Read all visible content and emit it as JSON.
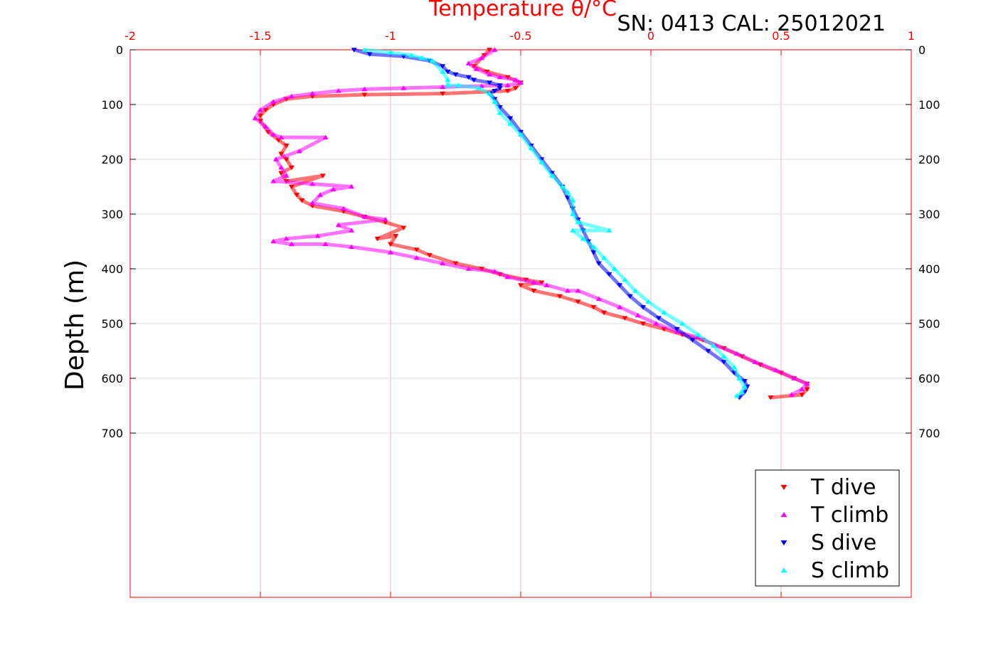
{
  "colors": {
    "t_dive": "#ff0000",
    "t_climb": "#ff00ff",
    "s_dive": "#0000ff",
    "s_climb": "#00ffff",
    "top_axis": "#ff0000",
    "grid_vertical": "#ffb3b3",
    "grid_horizontal": "#dddddd"
  },
  "chart_data": {
    "type": "scatter",
    "title": "Temperature θ/°C",
    "annotation": "SN: 0413  CAL: 25012021",
    "xlabel": "Temperature θ/°C",
    "ylabel": "Depth (m)",
    "xlim": [
      -2,
      1
    ],
    "ylim": [
      0,
      1000
    ],
    "y_reversed": true,
    "xticks": [
      -2,
      -1.5,
      -1,
      -0.5,
      0,
      0.5,
      1
    ],
    "xtick_labels": [
      "-2",
      "-1.5",
      "-1",
      "-0.5",
      "0",
      "0.5",
      "1"
    ],
    "yticks": [
      0,
      100,
      200,
      300,
      400,
      500,
      600,
      700
    ],
    "ytick_labels": [
      "0",
      "100",
      "200",
      "300",
      "400",
      "500",
      "600",
      "700"
    ],
    "grid": true,
    "legend_position": "bottom-right",
    "series": [
      {
        "name": "T dive",
        "marker": "triangle-down",
        "x": [
          -0.62,
          -0.64,
          -0.68,
          -0.63,
          -0.55,
          -0.5,
          -0.52,
          -0.55,
          -0.8,
          -1.1,
          -1.3,
          -1.4,
          -1.45,
          -1.48,
          -1.5,
          -1.5,
          -1.47,
          -1.43,
          -1.4,
          -1.42,
          -1.4,
          -1.38,
          -1.42,
          -1.4,
          -1.26,
          -1.38,
          -1.36,
          -1.34,
          -1.3,
          -1.18,
          -1.1,
          -1.02,
          -0.95,
          -1.05,
          -0.98,
          -1.0,
          -0.9,
          -0.85,
          -0.75,
          -0.65,
          -0.58,
          -0.48,
          -0.42,
          -0.5,
          -0.45,
          -0.35,
          -0.28,
          -0.22,
          -0.18,
          -0.1,
          -0.03,
          0.05,
          0.12,
          0.2,
          0.28,
          0.35,
          0.42,
          0.5,
          0.55,
          0.6,
          0.6,
          0.58,
          0.46
        ],
        "y": [
          0,
          10,
          30,
          40,
          50,
          60,
          70,
          75,
          80,
          82,
          85,
          90,
          100,
          110,
          120,
          130,
          150,
          165,
          175,
          190,
          200,
          215,
          225,
          240,
          230,
          250,
          265,
          275,
          285,
          295,
          305,
          315,
          325,
          345,
          340,
          355,
          365,
          375,
          390,
          400,
          410,
          420,
          425,
          430,
          440,
          450,
          460,
          470,
          480,
          490,
          500,
          510,
          520,
          530,
          545,
          560,
          575,
          590,
          600,
          610,
          620,
          630,
          635
        ]
      },
      {
        "name": "T climb",
        "marker": "triangle-up",
        "x": [
          -0.6,
          -0.65,
          -0.7,
          -0.67,
          -0.62,
          -0.58,
          -0.52,
          -0.5,
          -0.55,
          -0.65,
          -0.8,
          -0.95,
          -1.1,
          -1.2,
          -1.3,
          -1.38,
          -1.45,
          -1.5,
          -1.52,
          -1.48,
          -1.45,
          -1.42,
          -1.25,
          -1.35,
          -1.44,
          -1.42,
          -1.4,
          -1.45,
          -1.3,
          -1.15,
          -1.22,
          -1.27,
          -1.3,
          -1.18,
          -1.1,
          -1.02,
          -1.2,
          -1.15,
          -1.28,
          -1.4,
          -1.45,
          -1.38,
          -1.25,
          -1.15,
          -1.0,
          -0.9,
          -0.8,
          -0.7,
          -0.6,
          -0.55,
          -0.45,
          -0.4,
          -0.32,
          -0.28,
          -0.2,
          -0.12,
          -0.05,
          0.02,
          0.1,
          0.18,
          0.25,
          0.33,
          0.4,
          0.48,
          0.55,
          0.6,
          0.58,
          0.54
        ],
        "y": [
          0,
          15,
          25,
          35,
          45,
          50,
          55,
          60,
          65,
          66,
          68,
          70,
          72,
          75,
          80,
          85,
          95,
          110,
          125,
          140,
          155,
          160,
          160,
          185,
          200,
          215,
          230,
          240,
          245,
          250,
          255,
          265,
          280,
          290,
          305,
          310,
          320,
          330,
          340,
          345,
          350,
          355,
          355,
          360,
          370,
          380,
          390,
          400,
          405,
          415,
          425,
          430,
          440,
          440,
          455,
          470,
          485,
          500,
          515,
          525,
          540,
          555,
          570,
          585,
          600,
          610,
          620,
          630
        ]
      },
      {
        "name": "S dive",
        "marker": "triangle-down",
        "x": [
          -1.14,
          -1.08,
          -0.95,
          -0.85,
          -0.8,
          -0.78,
          -0.75,
          -0.7,
          -0.68,
          -0.62,
          -0.58,
          -0.58,
          -0.6,
          -0.62,
          -0.6,
          -0.58,
          -0.54,
          -0.5,
          -0.46,
          -0.42,
          -0.38,
          -0.34,
          -0.32,
          -0.3,
          -0.28,
          -0.26,
          -0.24,
          -0.22,
          -0.2,
          -0.16,
          -0.12,
          -0.08,
          -0.03,
          0.03,
          0.1,
          0.16,
          0.22,
          0.28,
          0.32,
          0.36,
          0.37,
          0.36,
          0.34
        ],
        "y": [
          0,
          8,
          12,
          20,
          30,
          40,
          45,
          50,
          55,
          60,
          65,
          70,
          75,
          80,
          90,
          105,
          125,
          150,
          175,
          200,
          225,
          250,
          270,
          290,
          310,
          330,
          350,
          370,
          390,
          410,
          430,
          450,
          470,
          490,
          510,
          530,
          550,
          570,
          590,
          605,
          615,
          625,
          635
        ]
      },
      {
        "name": "S climb",
        "marker": "triangle-up",
        "x": [
          -1.1,
          -1.0,
          -0.92,
          -0.88,
          -0.84,
          -0.8,
          -0.78,
          -0.78,
          -0.74,
          -0.66,
          -0.62,
          -0.6,
          -0.58,
          -0.54,
          -0.5,
          -0.46,
          -0.42,
          -0.38,
          -0.34,
          -0.32,
          -0.3,
          -0.3,
          -0.28,
          -0.16,
          -0.3,
          -0.26,
          -0.22,
          -0.18,
          -0.14,
          -0.1,
          -0.06,
          -0.01,
          0.05,
          0.12,
          0.18,
          0.24,
          0.28,
          0.32,
          0.34,
          0.36,
          0.35,
          0.33
        ],
        "y": [
          0,
          5,
          10,
          15,
          20,
          40,
          55,
          65,
          65,
          70,
          80,
          95,
          115,
          135,
          155,
          180,
          205,
          230,
          250,
          260,
          275,
          300,
          315,
          330,
          330,
          345,
          360,
          380,
          400,
          420,
          440,
          460,
          480,
          500,
          520,
          540,
          560,
          580,
          600,
          615,
          625,
          632
        ]
      }
    ]
  }
}
